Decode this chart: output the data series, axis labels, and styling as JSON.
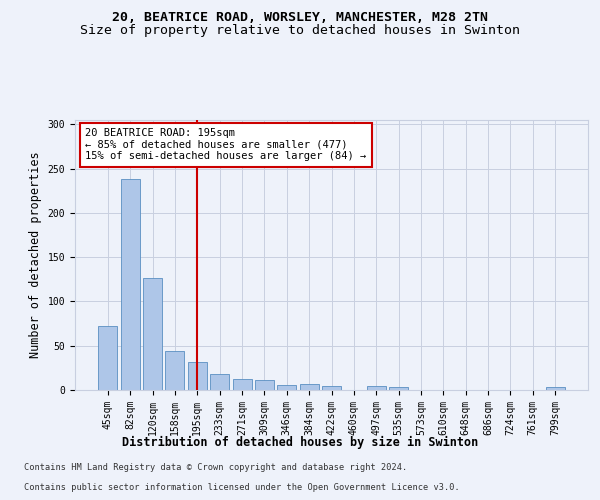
{
  "title1": "20, BEATRICE ROAD, WORSLEY, MANCHESTER, M28 2TN",
  "title2": "Size of property relative to detached houses in Swinton",
  "xlabel": "Distribution of detached houses by size in Swinton",
  "ylabel": "Number of detached properties",
  "categories": [
    "45sqm",
    "82sqm",
    "120sqm",
    "158sqm",
    "195sqm",
    "233sqm",
    "271sqm",
    "309sqm",
    "346sqm",
    "384sqm",
    "422sqm",
    "460sqm",
    "497sqm",
    "535sqm",
    "573sqm",
    "610sqm",
    "648sqm",
    "686sqm",
    "724sqm",
    "761sqm",
    "799sqm"
  ],
  "values": [
    72,
    238,
    126,
    44,
    32,
    18,
    12,
    11,
    6,
    7,
    5,
    0,
    4,
    3,
    0,
    0,
    0,
    0,
    0,
    0,
    3
  ],
  "bar_color": "#aec6e8",
  "bar_edge_color": "#5a8fc2",
  "vline_x_index": 4,
  "vline_color": "#cc0000",
  "annotation_line1": "20 BEATRICE ROAD: 195sqm",
  "annotation_line2": "← 85% of detached houses are smaller (477)",
  "annotation_line3": "15% of semi-detached houses are larger (84) →",
  "ylim": [
    0,
    305
  ],
  "yticks": [
    0,
    50,
    100,
    150,
    200,
    250,
    300
  ],
  "footer1": "Contains HM Land Registry data © Crown copyright and database right 2024.",
  "footer2": "Contains public sector information licensed under the Open Government Licence v3.0.",
  "background_color": "#eef2fa",
  "plot_bg_color": "#eef2fa",
  "grid_color": "#c8cfe0",
  "title1_fontsize": 9.5,
  "title2_fontsize": 9.5,
  "axis_label_fontsize": 8.5,
  "tick_fontsize": 7,
  "annotation_fontsize": 7.5,
  "footer_fontsize": 6.2
}
